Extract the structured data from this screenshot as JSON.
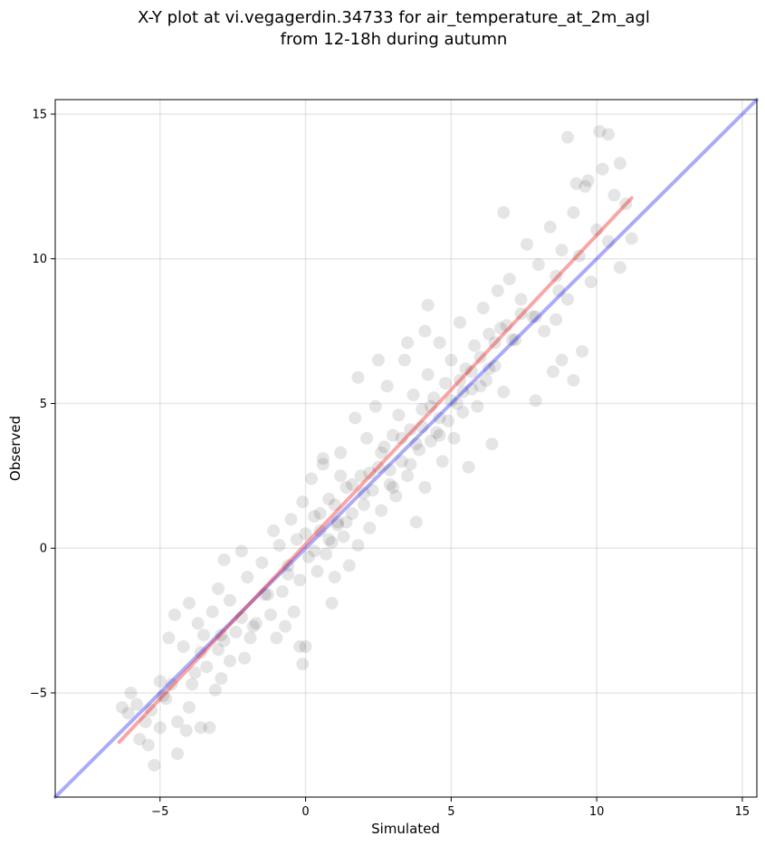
{
  "chart_data": {
    "type": "scatter",
    "title_line1": "X-Y plot at vi.vegagerdin.34733 for air_temperature_at_2m_agl",
    "title_line2": "from 12-18h during autumn",
    "xlabel": "Simulated",
    "ylabel": "Observed",
    "xlim": [
      -8.6,
      15.5
    ],
    "ylim": [
      -8.6,
      15.5
    ],
    "xticks": [
      -5,
      0,
      5,
      10,
      15
    ],
    "yticks": [
      -5,
      0,
      5,
      10,
      15
    ],
    "xtick_labels": [
      "−5",
      "0",
      "5",
      "10",
      "15"
    ],
    "ytick_labels": [
      "−5",
      "0",
      "5",
      "10",
      "15"
    ],
    "grid": true,
    "point_color": "#000000",
    "point_alpha": 0.1,
    "one_to_one_line": {
      "x": [
        -8.6,
        15.5
      ],
      "y": [
        -8.6,
        15.5
      ],
      "color": "#0000ee",
      "alpha": 0.33
    },
    "fit_line": {
      "x": [
        -6.4,
        11.2
      ],
      "y": [
        -6.7,
        12.1
      ],
      "color": "#ee0000",
      "alpha": 0.35
    },
    "points": [
      [
        -6.3,
        -5.5
      ],
      [
        -6.0,
        -5.0
      ],
      [
        -5.8,
        -5.4
      ],
      [
        -5.5,
        -6.0
      ],
      [
        -5.4,
        -6.8
      ],
      [
        -5.2,
        -7.5
      ],
      [
        -5.0,
        -6.2
      ],
      [
        -4.8,
        -5.2
      ],
      [
        -4.6,
        -4.7
      ],
      [
        -4.4,
        -7.1
      ],
      [
        -4.1,
        -6.3
      ],
      [
        -4.0,
        -5.5
      ],
      [
        -3.8,
        -4.3
      ],
      [
        -3.6,
        -3.6
      ],
      [
        -3.4,
        -4.1
      ],
      [
        -3.3,
        -6.2
      ],
      [
        -3.1,
        -4.9
      ],
      [
        -2.9,
        -4.5
      ],
      [
        -2.8,
        -3.2
      ],
      [
        -2.6,
        -3.9
      ],
      [
        -5.0,
        -4.6
      ],
      [
        -4.7,
        -3.1
      ],
      [
        -4.5,
        -2.3
      ],
      [
        -4.2,
        -3.4
      ],
      [
        -4.0,
        -1.9
      ],
      [
        -3.7,
        -2.6
      ],
      [
        -3.5,
        -3.0
      ],
      [
        -3.2,
        -2.2
      ],
      [
        -3.0,
        -1.4
      ],
      [
        -2.8,
        -0.4
      ],
      [
        -2.6,
        -1.8
      ],
      [
        -2.4,
        -2.9
      ],
      [
        -2.2,
        -0.1
      ],
      [
        -2.0,
        -1.0
      ],
      [
        -1.9,
        -3.1
      ],
      [
        -1.7,
        -2.6
      ],
      [
        -1.5,
        -0.5
      ],
      [
        -1.4,
        -1.6
      ],
      [
        -1.2,
        -2.3
      ],
      [
        -1.1,
        0.6
      ],
      [
        -1.0,
        -3.1
      ],
      [
        -0.9,
        0.1
      ],
      [
        -0.8,
        -1.5
      ],
      [
        -0.7,
        -2.7
      ],
      [
        -0.6,
        -0.6
      ],
      [
        -0.5,
        1.0
      ],
      [
        -0.4,
        -2.2
      ],
      [
        -0.3,
        0.3
      ],
      [
        -0.2,
        -1.1
      ],
      [
        -0.1,
        1.6
      ],
      [
        0.0,
        0.5
      ],
      [
        0.0,
        -3.4
      ],
      [
        0.1,
        -0.3
      ],
      [
        0.2,
        2.4
      ],
      [
        0.3,
        1.1
      ],
      [
        0.4,
        -0.8
      ],
      [
        0.5,
        0.6
      ],
      [
        0.6,
        2.9
      ],
      [
        0.7,
        -0.2
      ],
      [
        0.8,
        1.7
      ],
      [
        0.9,
        0.2
      ],
      [
        1.0,
        -1.0
      ],
      [
        1.1,
        0.9
      ],
      [
        1.2,
        3.3
      ],
      [
        1.3,
        0.4
      ],
      [
        1.4,
        2.1
      ],
      [
        1.5,
        -0.6
      ],
      [
        1.6,
        1.2
      ],
      [
        1.7,
        4.5
      ],
      [
        1.8,
        0.1
      ],
      [
        1.9,
        2.5
      ],
      [
        2.0,
        1.5
      ],
      [
        2.1,
        3.8
      ],
      [
        2.2,
        0.7
      ],
      [
        2.3,
        2.0
      ],
      [
        2.4,
        4.9
      ],
      [
        2.5,
        2.8
      ],
      [
        2.6,
        1.3
      ],
      [
        2.7,
        3.5
      ],
      [
        2.8,
        5.6
      ],
      [
        2.9,
        2.2
      ],
      [
        3.0,
        3.9
      ],
      [
        3.1,
        1.8
      ],
      [
        3.2,
        4.6
      ],
      [
        3.3,
        3.0
      ],
      [
        3.4,
        6.5
      ],
      [
        3.5,
        2.5
      ],
      [
        3.6,
        4.1
      ],
      [
        3.7,
        5.3
      ],
      [
        3.8,
        0.9
      ],
      [
        3.9,
        3.4
      ],
      [
        4.0,
        4.8
      ],
      [
        4.1,
        2.1
      ],
      [
        4.2,
        6.0
      ],
      [
        4.3,
        3.7
      ],
      [
        4.4,
        5.2
      ],
      [
        4.5,
        4.0
      ],
      [
        4.6,
        7.1
      ],
      [
        4.7,
        3.0
      ],
      [
        4.8,
        5.7
      ],
      [
        4.9,
        4.4
      ],
      [
        5.0,
        6.5
      ],
      [
        5.1,
        3.8
      ],
      [
        5.2,
        5.0
      ],
      [
        5.3,
        7.8
      ],
      [
        5.4,
        4.7
      ],
      [
        5.5,
        6.2
      ],
      [
        5.6,
        2.8
      ],
      [
        5.7,
        5.5
      ],
      [
        5.8,
        7.0
      ],
      [
        5.9,
        4.9
      ],
      [
        6.0,
        6.6
      ],
      [
        6.1,
        8.3
      ],
      [
        6.2,
        5.8
      ],
      [
        6.3,
        7.4
      ],
      [
        6.4,
        3.6
      ],
      [
        6.5,
        6.3
      ],
      [
        6.6,
        8.9
      ],
      [
        6.7,
        7.6
      ],
      [
        6.8,
        5.4
      ],
      [
        7.0,
        9.3
      ],
      [
        7.2,
        7.2
      ],
      [
        7.4,
        8.6
      ],
      [
        7.6,
        10.5
      ],
      [
        7.8,
        8.0
      ],
      [
        8.0,
        9.8
      ],
      [
        8.2,
        7.5
      ],
      [
        8.4,
        11.1
      ],
      [
        8.6,
        9.4
      ],
      [
        8.8,
        10.3
      ],
      [
        9.0,
        8.6
      ],
      [
        9.2,
        11.6
      ],
      [
        9.4,
        10.1
      ],
      [
        9.6,
        12.5
      ],
      [
        9.8,
        9.2
      ],
      [
        10.0,
        11.0
      ],
      [
        10.2,
        13.1
      ],
      [
        10.4,
        10.6
      ],
      [
        10.6,
        12.2
      ],
      [
        10.8,
        9.7
      ],
      [
        11.0,
        11.9
      ],
      [
        11.2,
        10.7
      ],
      [
        9.5,
        6.8
      ],
      [
        9.2,
        5.8
      ],
      [
        8.8,
        6.5
      ],
      [
        8.6,
        7.9
      ],
      [
        7.9,
        5.1
      ],
      [
        8.5,
        6.1
      ],
      [
        10.1,
        14.4
      ],
      [
        10.4,
        14.3
      ],
      [
        9.0,
        14.2
      ],
      [
        10.8,
        13.3
      ],
      [
        6.8,
        11.6
      ],
      [
        9.7,
        12.7
      ],
      [
        9.3,
        12.6
      ],
      [
        4.2,
        8.4
      ],
      [
        4.1,
        7.5
      ],
      [
        3.5,
        7.1
      ],
      [
        2.5,
        6.5
      ],
      [
        1.8,
        5.9
      ],
      [
        0.6,
        3.1
      ],
      [
        1.2,
        2.5
      ],
      [
        0.9,
        -1.9
      ],
      [
        -0.1,
        -4.0
      ],
      [
        -0.2,
        -3.4
      ],
      [
        -1.8,
        -2.7
      ],
      [
        -2.1,
        -3.8
      ],
      [
        -2.9,
        -3.0
      ],
      [
        -3.6,
        -6.2
      ],
      [
        -4.4,
        -6.0
      ],
      [
        -5.3,
        -5.6
      ],
      [
        -5.7,
        -6.6
      ],
      [
        -6.1,
        -5.7
      ],
      [
        -4.9,
        -5.1
      ],
      [
        -3.9,
        -4.7
      ],
      [
        -3.0,
        -3.5
      ],
      [
        -2.2,
        -2.4
      ],
      [
        -1.3,
        -1.6
      ],
      [
        -0.6,
        -0.9
      ],
      [
        0.3,
        -0.1
      ],
      [
        1.1,
        0.8
      ],
      [
        2.0,
        1.9
      ],
      [
        2.9,
        2.7
      ],
      [
        3.8,
        3.6
      ],
      [
        4.6,
        4.5
      ],
      [
        5.4,
        5.4
      ],
      [
        6.3,
        6.2
      ],
      [
        7.1,
        7.2
      ],
      [
        7.9,
        8.0
      ],
      [
        8.7,
        8.9
      ],
      [
        0.5,
        1.2
      ],
      [
        0.8,
        0.3
      ],
      [
        1.0,
        1.5
      ],
      [
        1.4,
        0.9
      ],
      [
        1.6,
        2.2
      ],
      [
        2.2,
        2.6
      ],
      [
        2.6,
        3.3
      ],
      [
        3.0,
        2.1
      ],
      [
        3.3,
        3.8
      ],
      [
        3.6,
        2.9
      ],
      [
        4.0,
        4.2
      ],
      [
        4.3,
        4.9
      ],
      [
        4.6,
        3.9
      ],
      [
        5.0,
        5.1
      ],
      [
        5.3,
        5.8
      ],
      [
        5.7,
        6.1
      ],
      [
        6.0,
        5.6
      ],
      [
        6.5,
        7.1
      ],
      [
        6.9,
        7.7
      ],
      [
        7.4,
        8.1
      ]
    ]
  }
}
